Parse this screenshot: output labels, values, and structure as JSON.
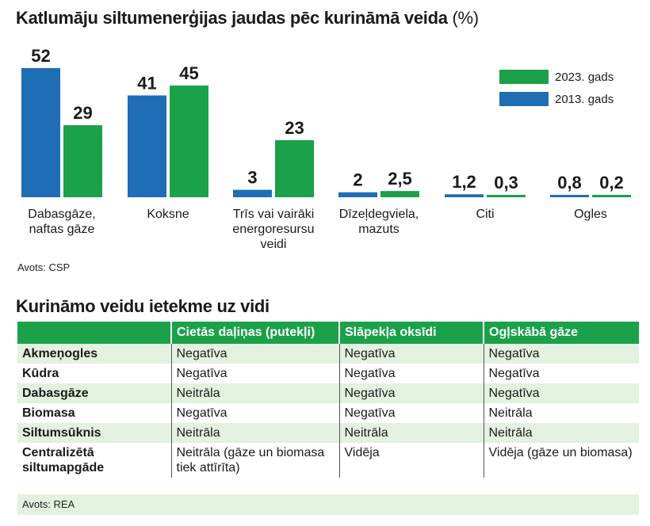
{
  "chart_title": "Katlumāju siltumenerģijas jaudas pēc kurināmā veida",
  "chart_title_unit": "(%)",
  "chart_source": "Avots: CSP",
  "colors": {
    "s2013": "#1f6db5",
    "s2023": "#1aa14a"
  },
  "chart_data": {
    "type": "bar",
    "title": "Katlumāju siltumenerģijas jaudas pēc kurināmā veida (%)",
    "categories": [
      [
        "Dabasgāze,",
        "naftas gāze"
      ],
      [
        "Koksne"
      ],
      [
        "Trīs vai vairāki",
        "energoresursu",
        "veidi"
      ],
      [
        "Dīzeļdegviela,",
        "mazuts"
      ],
      [
        "Citi"
      ],
      [
        "Ogles"
      ]
    ],
    "series": [
      {
        "name": "2013. gads",
        "values": [
          52,
          41,
          3,
          2,
          1.2,
          0.8
        ],
        "labels": [
          "52",
          "41",
          "3",
          "2",
          "1,2",
          "0,8"
        ]
      },
      {
        "name": "2023. gads",
        "values": [
          29,
          45,
          23,
          2.5,
          0.3,
          0.2
        ],
        "labels": [
          "29",
          "45",
          "23",
          "2,5",
          "0,3",
          "0,2"
        ]
      }
    ],
    "legend": [
      "2023. gads",
      "2013. gads"
    ],
    "ylim": [
      0,
      52
    ],
    "legend_position": "top-right",
    "grid": false
  },
  "table": {
    "title": "Kurināmo veidu ietekme uz vidi",
    "headers": [
      "",
      "Cietās daļiņas (putekļi)",
      "Slāpekļa oksīdi",
      "Ogļskābā gāze"
    ],
    "rows": [
      [
        "Akmeņogles",
        "Negatīva",
        "Negatīva",
        "Negatīva"
      ],
      [
        "Kūdra",
        "Negatīva",
        "Negatīva",
        "Negatīva"
      ],
      [
        "Dabasgāze",
        "Neitrāla",
        "Negatīva",
        "Negatīva"
      ],
      [
        "Biomasa",
        "Negatīva",
        "Negatīva",
        "Neitrāla"
      ],
      [
        "Siltumsūknis",
        "Neitrāla",
        "Neitrāla",
        "Neitrāla"
      ],
      [
        "Centralizētā siltumapgāde",
        "Neitrāla (gāze un biomasa tiek attīrīta)",
        "Vidēja",
        "Vidēja (gāze un biomasa)"
      ]
    ],
    "source": "Avots: REA"
  }
}
